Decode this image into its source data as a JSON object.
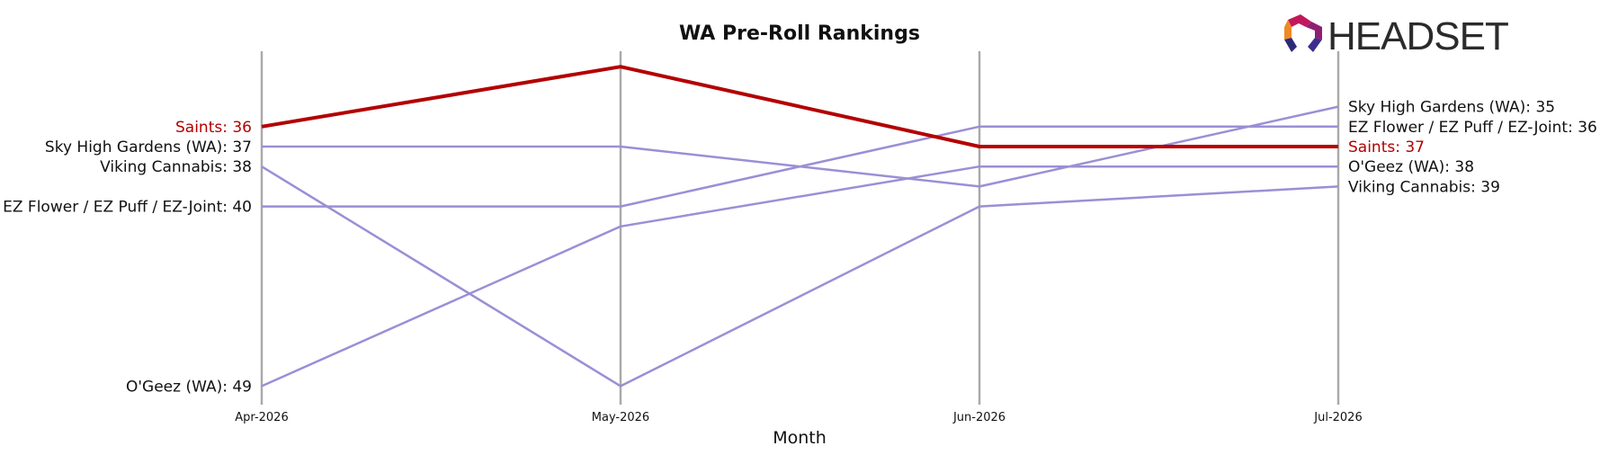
{
  "logo": {
    "text": "HEADSET"
  },
  "colors": {
    "highlight": "#b30000",
    "other": "#9a8fd6",
    "axis_line": "#aaaaaa"
  },
  "chart_data": {
    "type": "line",
    "title": "WA Pre-Roll Rankings",
    "xlabel": "Month",
    "ylabel": "",
    "categories": [
      "Apr-2026",
      "May-2026",
      "Jun-2026",
      "Jul-2026"
    ],
    "y_inverted": true,
    "grid": false,
    "series": [
      {
        "name": "Saints",
        "values": [
          36,
          33,
          37,
          37
        ],
        "highlight": true,
        "left_label": "Saints: 36",
        "right_label": "Saints: 37"
      },
      {
        "name": "Sky High Gardens (WA)",
        "values": [
          37,
          37,
          39,
          35
        ],
        "highlight": false,
        "left_label": "Sky High Gardens (WA): 37",
        "right_label": "Sky High Gardens (WA): 35"
      },
      {
        "name": "Viking Cannabis",
        "values": [
          38,
          49,
          40,
          39
        ],
        "highlight": false,
        "left_label": "Viking Cannabis: 38",
        "right_label": "Viking Cannabis: 39"
      },
      {
        "name": "EZ Flower / EZ Puff / EZ-Joint",
        "values": [
          40,
          40,
          36,
          36
        ],
        "highlight": false,
        "left_label": "EZ Flower / EZ Puff / EZ-Joint: 40",
        "right_label": "EZ Flower / EZ Puff / EZ-Joint: 36"
      },
      {
        "name": "O'Geez (WA)",
        "values": [
          49,
          41,
          38,
          38
        ],
        "highlight": false,
        "left_label": "O'Geez (WA): 49",
        "right_label": "O'Geez (WA): 38"
      }
    ]
  }
}
